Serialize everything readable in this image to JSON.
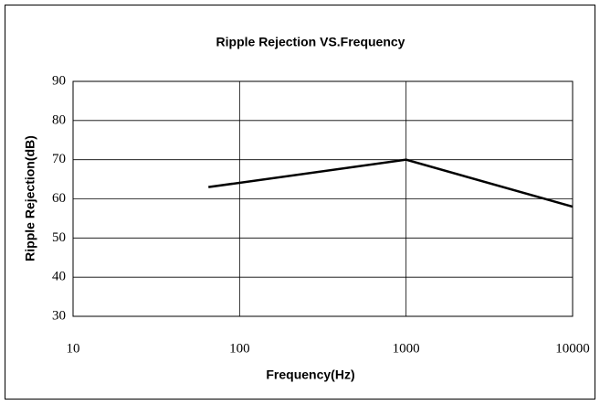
{
  "chart_data": {
    "type": "line",
    "title": "Ripple Rejection VS.Frequency",
    "xlabel": "Frequency(Hz)",
    "ylabel": "Ripple Rejection(dB)",
    "x": [
      65,
      1000,
      10000
    ],
    "series": [
      {
        "name": "Ripple Rejection",
        "color": "#000000",
        "values": [
          63,
          70,
          58
        ]
      }
    ],
    "xlim": [
      10,
      10000
    ],
    "xticks": [
      10,
      100,
      1000,
      10000
    ],
    "xscale": "log",
    "ylim": [
      30,
      90
    ],
    "yticks": [
      30,
      40,
      50,
      60,
      70,
      80,
      90
    ],
    "grid": true
  }
}
